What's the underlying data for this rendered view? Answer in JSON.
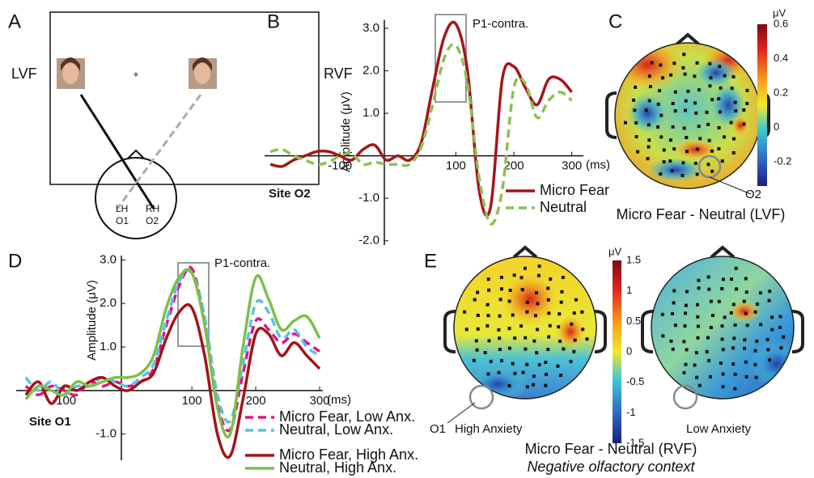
{
  "panel_a": {
    "letter": "A",
    "left_field": "LVF",
    "right_field": "RVF",
    "fixation": "+",
    "left_hemisphere": "LH",
    "left_site": "O1",
    "right_hemisphere": "RH",
    "right_site": "O2"
  },
  "chart_data": [
    {
      "type": "line",
      "letter": "B",
      "ylabel": "Amplitude (μV)",
      "x_unit": "(ms)",
      "site": "Site O2",
      "annotation": "P1-contra.",
      "x": [
        -220,
        -200,
        -180,
        -160,
        -140,
        -120,
        -100,
        -80,
        -60,
        -40,
        -20,
        0,
        20,
        40,
        60,
        80,
        100,
        120,
        140,
        160,
        180,
        200,
        220,
        240,
        260,
        280,
        300
      ],
      "series": [
        {
          "name": "Micro Fear",
          "color": "#a3161c",
          "dashed": false,
          "values": [
            -0.2,
            -0.25,
            -0.1,
            0.0,
            0.1,
            0.1,
            0.0,
            -0.1,
            0.15,
            0.25,
            -0.1,
            0.0,
            -0.1,
            0.3,
            1.6,
            2.8,
            3.1,
            2.0,
            -0.8,
            -1.2,
            1.8,
            2.1,
            1.6,
            1.2,
            1.8,
            1.8,
            1.5
          ]
        },
        {
          "name": "Neutral",
          "color": "#8cc152",
          "dashed": true,
          "values": [
            0.1,
            0.15,
            0.0,
            -0.1,
            -0.2,
            -0.15,
            0.0,
            0.05,
            -0.2,
            -0.15,
            -0.2,
            -0.2,
            -0.2,
            0.2,
            1.2,
            2.3,
            2.6,
            1.7,
            -0.5,
            -1.6,
            -0.8,
            1.6,
            1.7,
            0.9,
            1.3,
            1.5,
            1.3
          ]
        }
      ],
      "xlim": [
        -230,
        320
      ],
      "ylim": [
        -2.1,
        3.2
      ],
      "xticks": [
        -100,
        100,
        200,
        300
      ],
      "yticks": [
        {
          "value": 3,
          "label": "3.0"
        },
        {
          "value": 2,
          "label": "2.0"
        },
        {
          "value": 1,
          "label": "1.0"
        },
        {
          "value": -1,
          "label": "-1.0"
        },
        {
          "value": -2,
          "label": "-2.0"
        }
      ]
    },
    {
      "type": "line",
      "letter": "D",
      "ylabel": "Amplitude (μV)",
      "x_unit": "(ms)",
      "site": "Site O1",
      "annotation": "P1-contra.",
      "x": [
        -160,
        -140,
        -120,
        -100,
        -80,
        -60,
        -40,
        -20,
        0,
        20,
        40,
        60,
        80,
        100,
        120,
        140,
        160,
        180,
        200,
        220,
        240,
        260,
        280,
        300
      ],
      "series": [
        {
          "name": "Micro Fear, Low Anx.",
          "color": "#e0157e",
          "dashed": true,
          "values": [
            0.1,
            -0.1,
            0.1,
            0.0,
            -0.1,
            0.2,
            0.1,
            0.2,
            0.1,
            0.2,
            0.5,
            1.5,
            2.4,
            2.8,
            1.6,
            -0.3,
            -0.9,
            0.4,
            1.6,
            1.4,
            1.1,
            1.3,
            1.1,
            0.9
          ]
        },
        {
          "name": "Neutral, Low Anx.",
          "color": "#5bbfe8",
          "dashed": true,
          "values": [
            0.3,
            0.0,
            0.2,
            -0.1,
            0.1,
            0.1,
            0.3,
            0.2,
            0.1,
            0.3,
            0.6,
            1.6,
            2.5,
            2.7,
            1.7,
            -0.1,
            -0.7,
            0.6,
            2.0,
            1.8,
            1.2,
            1.4,
            1.0,
            0.8
          ]
        },
        {
          "name": "Micro Fear, High Anx.",
          "color": "#a0151b",
          "dashed": false,
          "values": [
            -0.1,
            0.2,
            -0.3,
            0.1,
            0.0,
            0.2,
            0.3,
            0.1,
            0.0,
            0.2,
            0.4,
            1.2,
            1.8,
            1.9,
            0.8,
            -1.0,
            -1.5,
            -0.2,
            1.3,
            1.3,
            0.8,
            1.1,
            0.8,
            0.5
          ]
        },
        {
          "name": "Neutral, High Anx.",
          "color": "#7cc04b",
          "dashed": false,
          "values": [
            -0.2,
            0.1,
            0.0,
            -0.1,
            0.2,
            0.1,
            0.2,
            0.3,
            0.3,
            0.4,
            0.8,
            1.9,
            2.6,
            2.7,
            1.5,
            -0.4,
            -1.0,
            1.0,
            2.6,
            2.1,
            1.4,
            1.6,
            1.7,
            1.2
          ]
        }
      ],
      "xlim": [
        -175,
        305
      ],
      "ylim": [
        -1.6,
        3.1
      ],
      "xticks": [
        -100,
        100,
        200,
        300
      ],
      "yticks": [
        {
          "value": 3,
          "label": "3.0"
        },
        {
          "value": 2,
          "label": "2.0"
        },
        {
          "value": 1,
          "label": "1.0"
        },
        {
          "value": -1,
          "label": "-1.0"
        }
      ]
    }
  ],
  "panel_c": {
    "letter": "C",
    "unit": "μV",
    "colorbar_ticks": [
      0.6,
      0.4,
      0.2,
      0,
      -0.2
    ],
    "site": "O2",
    "caption": "Micro Fear - Neutral (LVF)"
  },
  "panel_e": {
    "letter": "E",
    "unit": "μV",
    "colorbar_ticks": [
      1.5,
      1,
      0.5,
      0,
      -0.5,
      -1,
      -1.5
    ],
    "site": "O1",
    "left_map": "High Anxiety",
    "right_map": "Low Anxiety",
    "caption": "Micro Fear - Neutral (RVF)",
    "subcaption": "Negative olfactory context"
  }
}
